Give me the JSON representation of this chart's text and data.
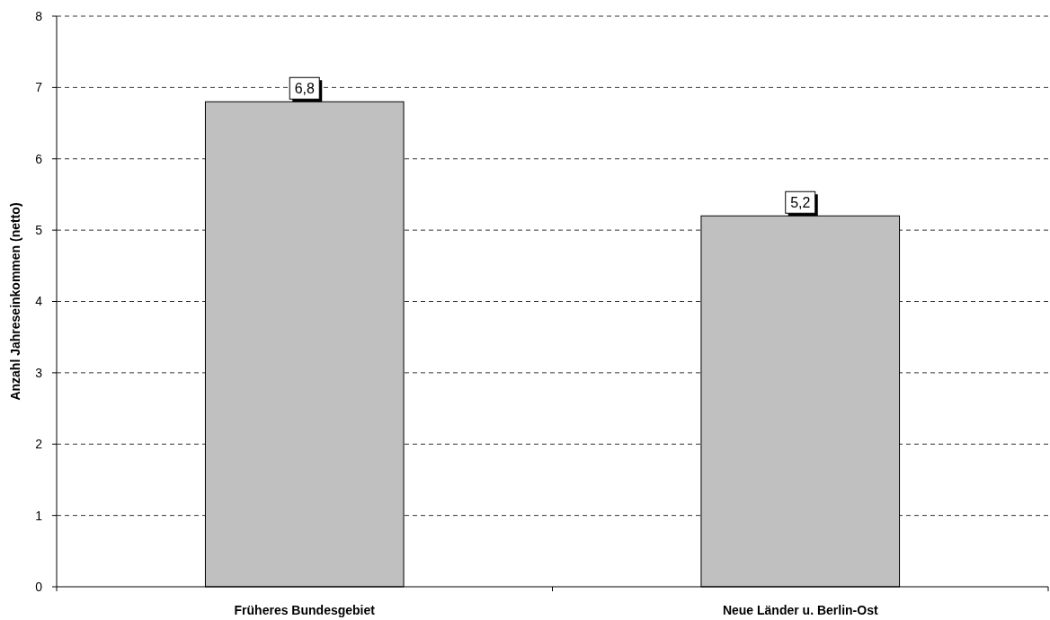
{
  "chart_data": {
    "type": "bar",
    "ylabel": "Anzahl Jahreseinkommen (netto)",
    "categories": [
      "Früheres Bundesgebiet",
      "Neue Länder u. Berlin-Ost"
    ],
    "values": [
      6.8,
      5.2
    ],
    "color": "#c0c0c0",
    "value_labels": [
      "6,8",
      "5,2"
    ],
    "ylim": [
      0,
      8
    ],
    "yticks": [
      0,
      1,
      2,
      3,
      4,
      5,
      6,
      7,
      8
    ],
    "grid": "y"
  }
}
